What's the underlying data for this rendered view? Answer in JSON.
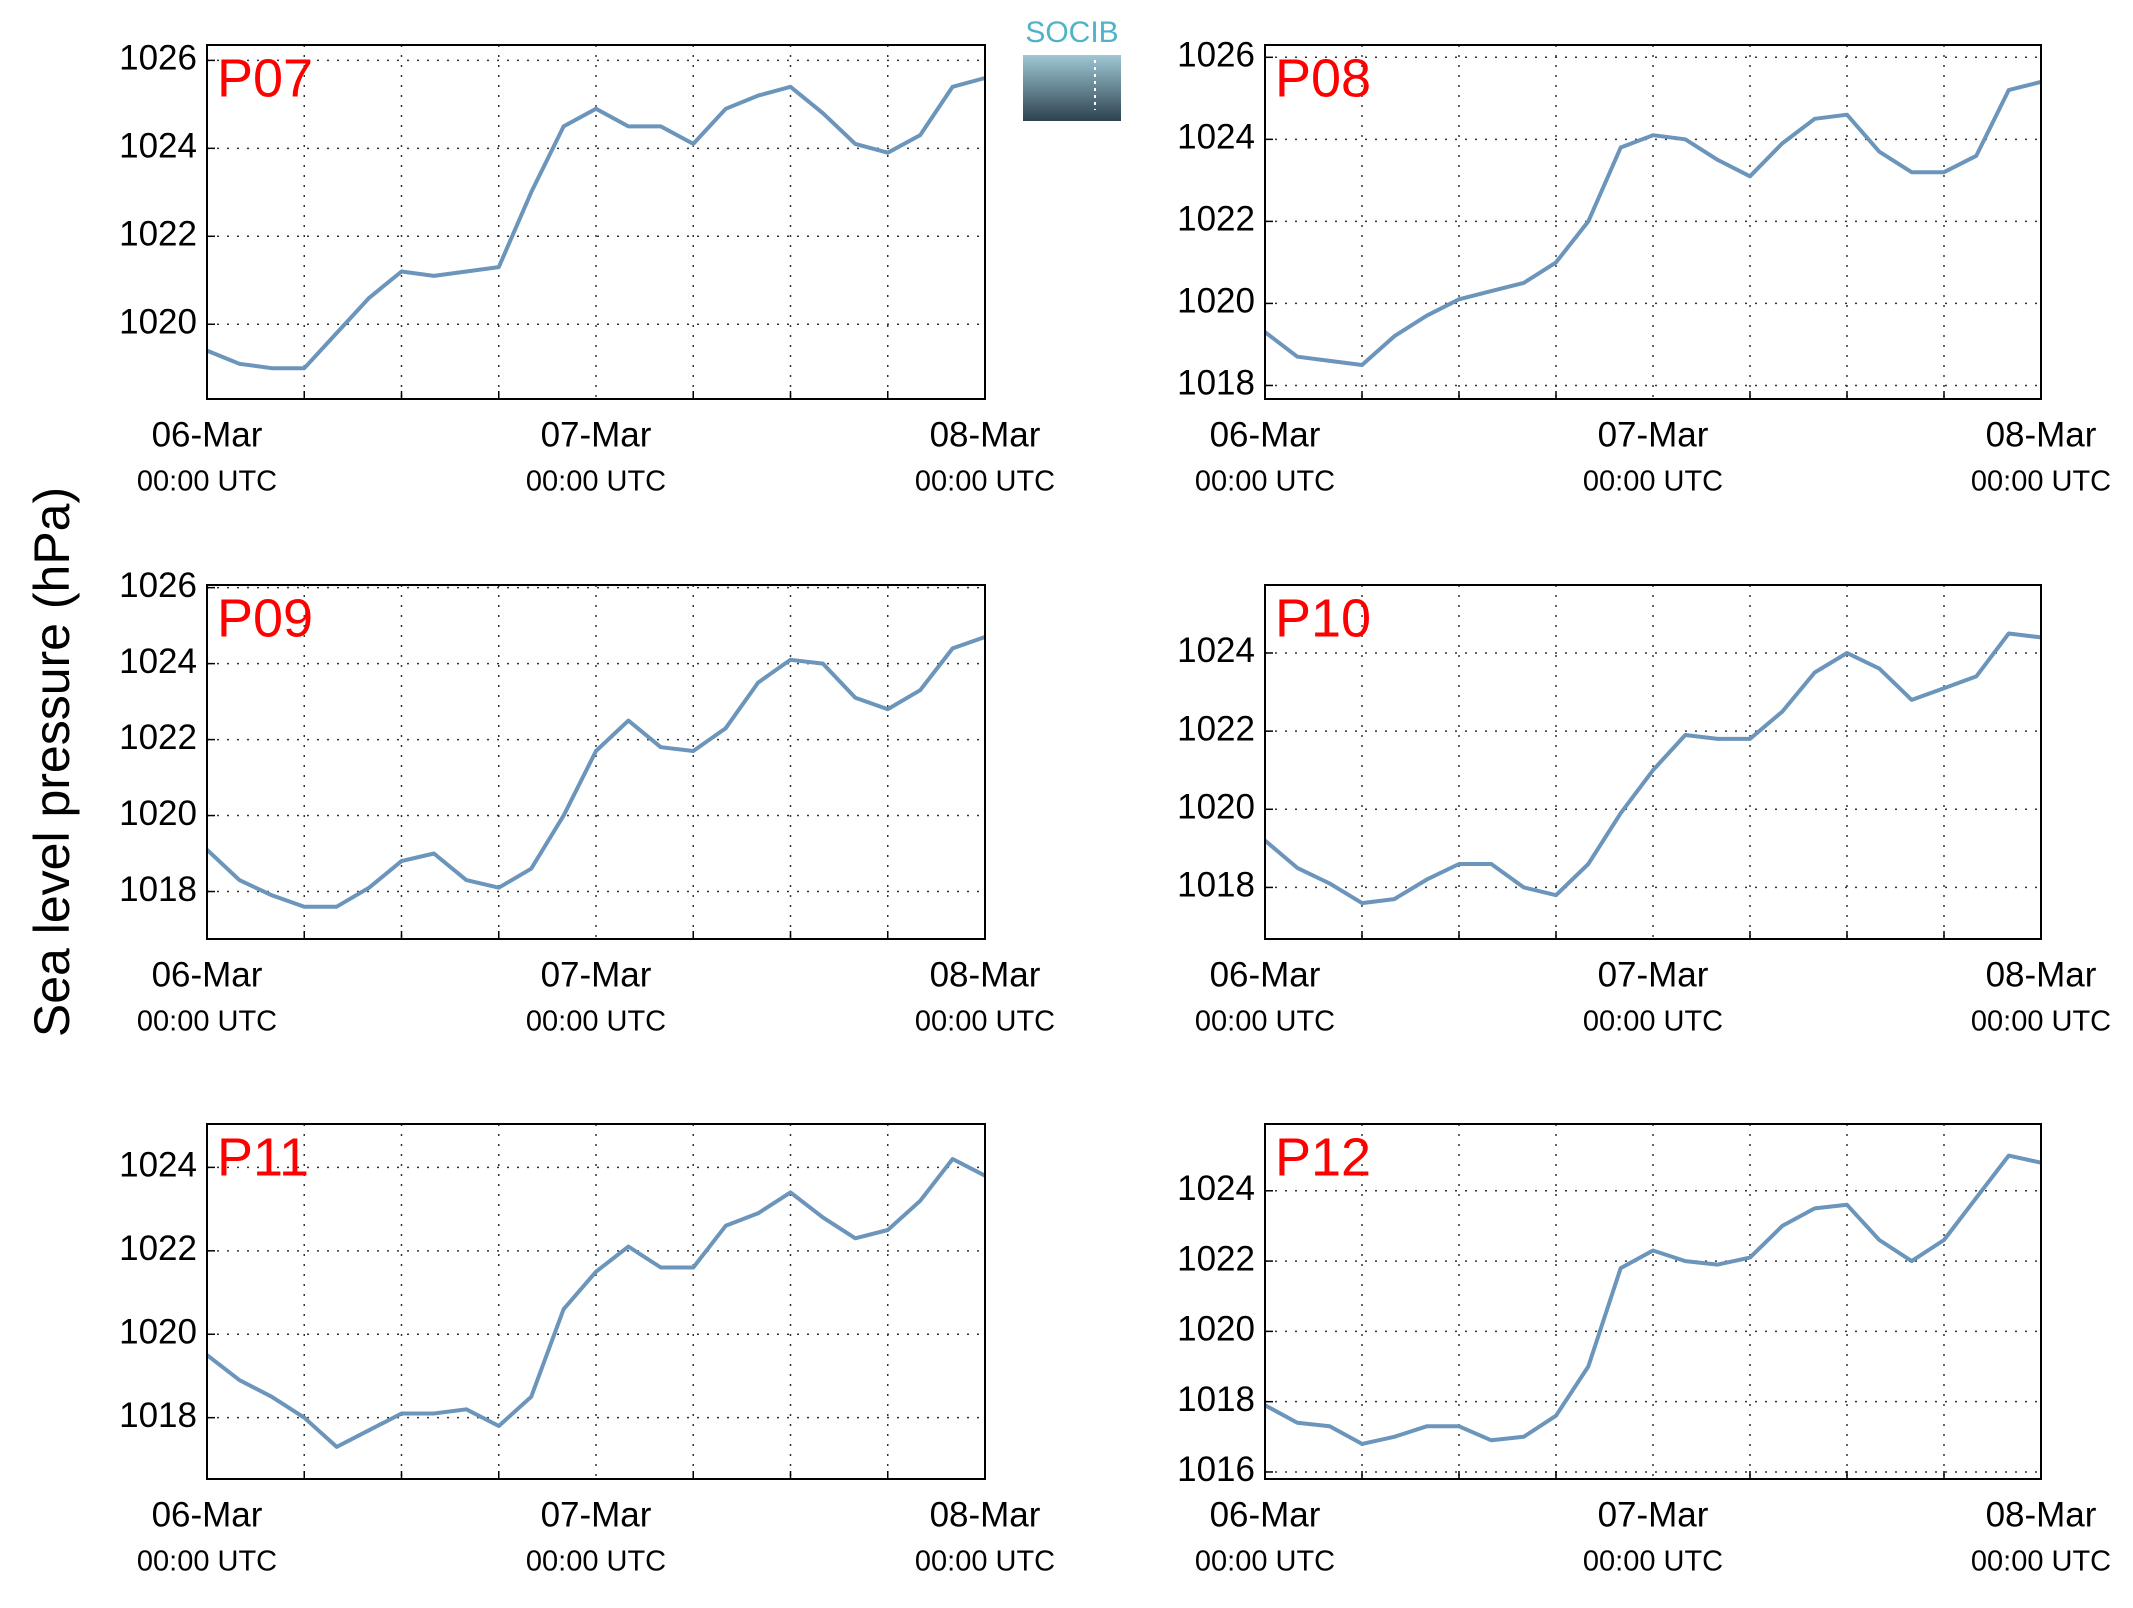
{
  "ylabel": "Sea level pressure (hPa)",
  "logo": "SOCIB",
  "chart_data": [
    {
      "type": "line",
      "title": "P07",
      "color": "#6b95bb",
      "grid": true,
      "x": [
        "06-Mar 00:00",
        "06-Mar 02:00",
        "06-Mar 04:00",
        "06-Mar 06:00",
        "06-Mar 08:00",
        "06-Mar 10:00",
        "06-Mar 12:00",
        "06-Mar 14:00",
        "06-Mar 16:00",
        "06-Mar 18:00",
        "06-Mar 20:00",
        "06-Mar 22:00",
        "07-Mar 00:00",
        "07-Mar 02:00",
        "07-Mar 04:00",
        "07-Mar 06:00",
        "07-Mar 08:00",
        "07-Mar 10:00",
        "07-Mar 12:00",
        "07-Mar 14:00",
        "07-Mar 16:00",
        "07-Mar 18:00",
        "07-Mar 20:00",
        "07-Mar 22:00",
        "08-Mar 00:00"
      ],
      "values": [
        1019.4,
        1019.1,
        1019.0,
        1019.0,
        1019.8,
        1020.6,
        1021.2,
        1021.1,
        1021.2,
        1021.3,
        1023.0,
        1024.5,
        1024.9,
        1024.5,
        1024.5,
        1024.1,
        1024.9,
        1025.2,
        1025.4,
        1024.8,
        1024.1,
        1023.9,
        1024.3,
        1025.4,
        1025.6
      ],
      "xlim": [
        "06-Mar 00:00",
        "08-Mar 00:00"
      ],
      "xticks": [
        {
          "value": "06-Mar 00:00",
          "label": "06-Mar",
          "label2": "00:00 UTC"
        },
        {
          "value": "07-Mar 00:00",
          "label": "07-Mar",
          "label2": "00:00 UTC"
        },
        {
          "value": "08-Mar 00:00",
          "label": "08-Mar",
          "label2": "00:00 UTC"
        }
      ],
      "xminor": [
        "06-Mar 06:00",
        "06-Mar 12:00",
        "06-Mar 18:00",
        "07-Mar 06:00",
        "07-Mar 12:00",
        "07-Mar 18:00"
      ],
      "ylim": [
        1018.3,
        1026.35
      ],
      "yticks": [
        1020,
        1022,
        1024,
        1026
      ]
    },
    {
      "type": "line",
      "title": "P08",
      "color": "#6b95bb",
      "grid": true,
      "x": [
        "06-Mar 00:00",
        "06-Mar 02:00",
        "06-Mar 04:00",
        "06-Mar 06:00",
        "06-Mar 08:00",
        "06-Mar 10:00",
        "06-Mar 12:00",
        "06-Mar 14:00",
        "06-Mar 16:00",
        "06-Mar 18:00",
        "06-Mar 20:00",
        "06-Mar 22:00",
        "07-Mar 00:00",
        "07-Mar 02:00",
        "07-Mar 04:00",
        "07-Mar 06:00",
        "07-Mar 08:00",
        "07-Mar 10:00",
        "07-Mar 12:00",
        "07-Mar 14:00",
        "07-Mar 16:00",
        "07-Mar 18:00",
        "07-Mar 20:00",
        "07-Mar 22:00",
        "08-Mar 00:00"
      ],
      "values": [
        1019.3,
        1018.7,
        1018.6,
        1018.5,
        1019.2,
        1019.7,
        1020.1,
        1020.3,
        1020.5,
        1021.0,
        1022.0,
        1023.8,
        1024.1,
        1024.0,
        1023.5,
        1023.1,
        1023.9,
        1024.5,
        1024.6,
        1023.7,
        1023.2,
        1023.2,
        1023.6,
        1025.2,
        1025.4
      ],
      "xlim": [
        "06-Mar 00:00",
        "08-Mar 00:00"
      ],
      "xticks": [
        {
          "value": "06-Mar 00:00",
          "label": "06-Mar",
          "label2": "00:00 UTC"
        },
        {
          "value": "07-Mar 00:00",
          "label": "07-Mar",
          "label2": "00:00 UTC"
        },
        {
          "value": "08-Mar 00:00",
          "label": "08-Mar",
          "label2": "00:00 UTC"
        }
      ],
      "xminor": [
        "06-Mar 06:00",
        "06-Mar 12:00",
        "06-Mar 18:00",
        "07-Mar 06:00",
        "07-Mar 12:00",
        "07-Mar 18:00"
      ],
      "ylim": [
        1017.67,
        1026.3
      ],
      "yticks": [
        1018,
        1020,
        1022,
        1024,
        1026
      ]
    },
    {
      "type": "line",
      "title": "P09",
      "color": "#6b95bb",
      "grid": true,
      "x": [
        "06-Mar 00:00",
        "06-Mar 02:00",
        "06-Mar 04:00",
        "06-Mar 06:00",
        "06-Mar 08:00",
        "06-Mar 10:00",
        "06-Mar 12:00",
        "06-Mar 14:00",
        "06-Mar 16:00",
        "06-Mar 18:00",
        "06-Mar 20:00",
        "06-Mar 22:00",
        "07-Mar 00:00",
        "07-Mar 02:00",
        "07-Mar 04:00",
        "07-Mar 06:00",
        "07-Mar 08:00",
        "07-Mar 10:00",
        "07-Mar 12:00",
        "07-Mar 14:00",
        "07-Mar 16:00",
        "07-Mar 18:00",
        "07-Mar 20:00",
        "07-Mar 22:00",
        "08-Mar 00:00"
      ],
      "values": [
        1019.1,
        1018.3,
        1017.9,
        1017.6,
        1017.6,
        1018.1,
        1018.8,
        1019.0,
        1018.3,
        1018.1,
        1018.6,
        1020.0,
        1021.7,
        1022.5,
        1021.8,
        1021.7,
        1022.3,
        1023.5,
        1024.1,
        1024.0,
        1023.1,
        1022.8,
        1023.3,
        1024.4,
        1024.7
      ],
      "xlim": [
        "06-Mar 00:00",
        "08-Mar 00:00"
      ],
      "xticks": [
        {
          "value": "06-Mar 00:00",
          "label": "06-Mar",
          "label2": "00:00 UTC"
        },
        {
          "value": "07-Mar 00:00",
          "label": "07-Mar",
          "label2": "00:00 UTC"
        },
        {
          "value": "08-Mar 00:00",
          "label": "08-Mar",
          "label2": "00:00 UTC"
        }
      ],
      "xminor": [
        "06-Mar 06:00",
        "06-Mar 12:00",
        "06-Mar 18:00",
        "07-Mar 06:00",
        "07-Mar 12:00",
        "07-Mar 18:00"
      ],
      "ylim": [
        1016.75,
        1026.07
      ],
      "yticks": [
        1018,
        1020,
        1022,
        1024,
        1026
      ]
    },
    {
      "type": "line",
      "title": "P10",
      "color": "#6b95bb",
      "grid": true,
      "x": [
        "06-Mar 00:00",
        "06-Mar 02:00",
        "06-Mar 04:00",
        "06-Mar 06:00",
        "06-Mar 08:00",
        "06-Mar 10:00",
        "06-Mar 12:00",
        "06-Mar 14:00",
        "06-Mar 16:00",
        "06-Mar 18:00",
        "06-Mar 20:00",
        "06-Mar 22:00",
        "07-Mar 00:00",
        "07-Mar 02:00",
        "07-Mar 04:00",
        "07-Mar 06:00",
        "07-Mar 08:00",
        "07-Mar 10:00",
        "07-Mar 12:00",
        "07-Mar 14:00",
        "07-Mar 16:00",
        "07-Mar 18:00",
        "07-Mar 20:00",
        "07-Mar 22:00",
        "08-Mar 00:00"
      ],
      "values": [
        1019.2,
        1018.5,
        1018.1,
        1017.6,
        1017.7,
        1018.2,
        1018.6,
        1018.6,
        1018.0,
        1017.8,
        1018.6,
        1019.9,
        1021.0,
        1021.9,
        1021.8,
        1021.8,
        1022.5,
        1023.5,
        1024.0,
        1023.6,
        1022.8,
        1023.1,
        1023.4,
        1024.5,
        1024.4
      ],
      "xlim": [
        "06-Mar 00:00",
        "08-Mar 00:00"
      ],
      "xticks": [
        {
          "value": "06-Mar 00:00",
          "label": "06-Mar",
          "label2": "00:00 UTC"
        },
        {
          "value": "07-Mar 00:00",
          "label": "07-Mar",
          "label2": "00:00 UTC"
        },
        {
          "value": "08-Mar 00:00",
          "label": "08-Mar",
          "label2": "00:00 UTC"
        }
      ],
      "xminor": [
        "06-Mar 06:00",
        "06-Mar 12:00",
        "06-Mar 18:00",
        "07-Mar 06:00",
        "07-Mar 12:00",
        "07-Mar 18:00"
      ],
      "ylim": [
        1016.68,
        1025.74
      ],
      "yticks": [
        1018,
        1020,
        1022,
        1024
      ]
    },
    {
      "type": "line",
      "title": "P11",
      "color": "#6b95bb",
      "grid": true,
      "x": [
        "06-Mar 00:00",
        "06-Mar 02:00",
        "06-Mar 04:00",
        "06-Mar 06:00",
        "06-Mar 08:00",
        "06-Mar 10:00",
        "06-Mar 12:00",
        "06-Mar 14:00",
        "06-Mar 16:00",
        "06-Mar 18:00",
        "06-Mar 20:00",
        "06-Mar 22:00",
        "07-Mar 00:00",
        "07-Mar 02:00",
        "07-Mar 04:00",
        "07-Mar 06:00",
        "07-Mar 08:00",
        "07-Mar 10:00",
        "07-Mar 12:00",
        "07-Mar 14:00",
        "07-Mar 16:00",
        "07-Mar 18:00",
        "07-Mar 20:00",
        "07-Mar 22:00",
        "08-Mar 00:00"
      ],
      "values": [
        1019.5,
        1018.9,
        1018.5,
        1018.0,
        1017.3,
        1017.7,
        1018.1,
        1018.1,
        1018.2,
        1017.8,
        1018.5,
        1020.6,
        1021.5,
        1022.1,
        1021.6,
        1021.6,
        1022.6,
        1022.9,
        1023.4,
        1022.8,
        1022.3,
        1022.5,
        1023.2,
        1024.2,
        1023.8
      ],
      "xlim": [
        "06-Mar 00:00",
        "08-Mar 00:00"
      ],
      "xticks": [
        {
          "value": "06-Mar 00:00",
          "label": "06-Mar",
          "label2": "00:00 UTC"
        },
        {
          "value": "07-Mar 00:00",
          "label": "07-Mar",
          "label2": "00:00 UTC"
        },
        {
          "value": "08-Mar 00:00",
          "label": "08-Mar",
          "label2": "00:00 UTC"
        }
      ],
      "xminor": [
        "06-Mar 06:00",
        "06-Mar 12:00",
        "06-Mar 18:00",
        "07-Mar 06:00",
        "07-Mar 12:00",
        "07-Mar 18:00"
      ],
      "ylim": [
        1016.53,
        1025.04
      ],
      "yticks": [
        1018,
        1020,
        1022,
        1024
      ]
    },
    {
      "type": "line",
      "title": "P12",
      "color": "#6b95bb",
      "grid": true,
      "x": [
        "06-Mar 00:00",
        "06-Mar 02:00",
        "06-Mar 04:00",
        "06-Mar 06:00",
        "06-Mar 08:00",
        "06-Mar 10:00",
        "06-Mar 12:00",
        "06-Mar 14:00",
        "06-Mar 16:00",
        "06-Mar 18:00",
        "06-Mar 20:00",
        "06-Mar 22:00",
        "07-Mar 00:00",
        "07-Mar 02:00",
        "07-Mar 04:00",
        "07-Mar 06:00",
        "07-Mar 08:00",
        "07-Mar 10:00",
        "07-Mar 12:00",
        "07-Mar 14:00",
        "07-Mar 16:00",
        "07-Mar 18:00",
        "07-Mar 20:00",
        "07-Mar 22:00",
        "08-Mar 00:00"
      ],
      "values": [
        1017.9,
        1017.4,
        1017.3,
        1016.8,
        1017.0,
        1017.3,
        1017.3,
        1016.9,
        1017.0,
        1017.6,
        1019.0,
        1021.8,
        1022.3,
        1022.0,
        1021.9,
        1022.1,
        1023.0,
        1023.5,
        1023.6,
        1022.6,
        1022.0,
        1022.6,
        1023.8,
        1025.0,
        1024.8
      ],
      "xlim": [
        "06-Mar 00:00",
        "08-Mar 00:00"
      ],
      "xticks": [
        {
          "value": "06-Mar 00:00",
          "label": "06-Mar",
          "label2": "00:00 UTC"
        },
        {
          "value": "07-Mar 00:00",
          "label": "07-Mar",
          "label2": "00:00 UTC"
        },
        {
          "value": "08-Mar 00:00",
          "label": "08-Mar",
          "label2": "00:00 UTC"
        }
      ],
      "xminor": [
        "06-Mar 06:00",
        "06-Mar 12:00",
        "06-Mar 18:00",
        "07-Mar 06:00",
        "07-Mar 12:00",
        "07-Mar 18:00"
      ],
      "ylim": [
        1015.8,
        1025.9
      ],
      "yticks": [
        1016,
        1018,
        1020,
        1022,
        1024
      ]
    }
  ]
}
